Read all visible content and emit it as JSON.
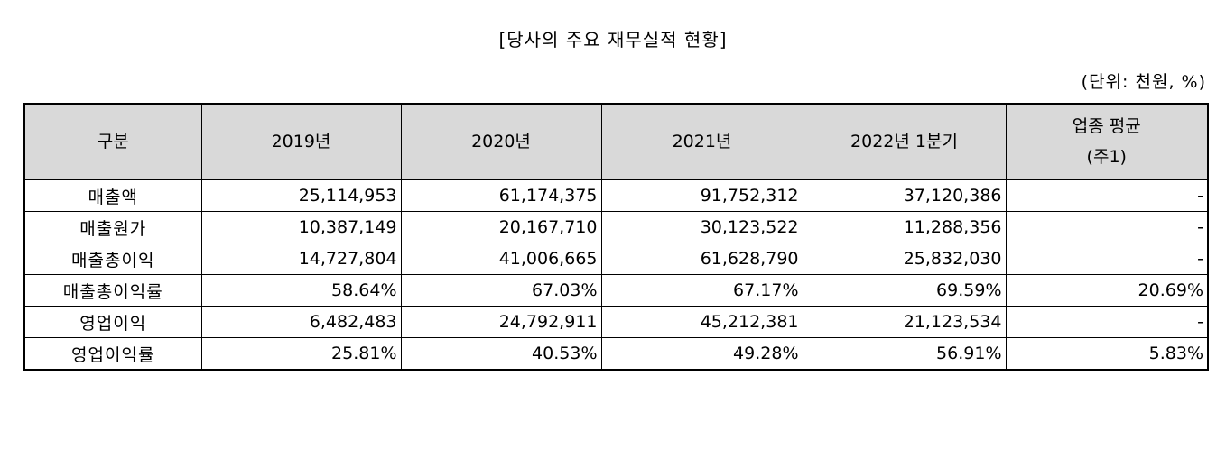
{
  "title": "[당사의 주요 재무실적 현황]",
  "unit": "(단위: 천원, %)",
  "table": {
    "headers": {
      "category": "구분",
      "y2019": "2019년",
      "y2020": "2020년",
      "y2021": "2021년",
      "y2022q1": "2022년 1분기",
      "industry_line1": "업종 평균",
      "industry_line2": "(주1)"
    },
    "rows": [
      {
        "label": "매출액",
        "y2019": "25,114,953",
        "y2020": "61,174,375",
        "y2021": "91,752,312",
        "y2022q1": "37,120,386",
        "industry": "-"
      },
      {
        "label": "매출원가",
        "y2019": "10,387,149",
        "y2020": "20,167,710",
        "y2021": "30,123,522",
        "y2022q1": "11,288,356",
        "industry": "-"
      },
      {
        "label": "매출총이익",
        "y2019": "14,727,804",
        "y2020": "41,006,665",
        "y2021": "61,628,790",
        "y2022q1": "25,832,030",
        "industry": "-"
      },
      {
        "label": "매출총이익률",
        "y2019": "58.64%",
        "y2020": "67.03%",
        "y2021": "67.17%",
        "y2022q1": "69.59%",
        "industry": "20.69%"
      },
      {
        "label": "영업이익",
        "y2019": "6,482,483",
        "y2020": "24,792,911",
        "y2021": "45,212,381",
        "y2022q1": "21,123,534",
        "industry": "-"
      },
      {
        "label": "영업이익률",
        "y2019": "25.81%",
        "y2020": "40.53%",
        "y2021": "49.28%",
        "y2022q1": "56.91%",
        "industry": "5.83%"
      }
    ]
  }
}
